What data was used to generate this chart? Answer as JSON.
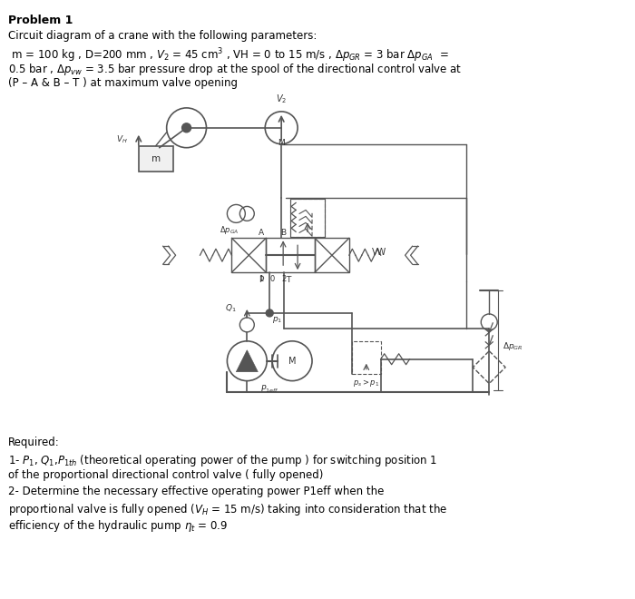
{
  "title": "Problem 1",
  "bg_color": "#ffffff",
  "text_color": "#000000",
  "line_color": "#555555",
  "fig_width": 7.0,
  "fig_height": 6.6,
  "header_lines": [
    "Circuit diagram of a crane with the following parameters:",
    " m = 100 kg , D=200 mm , V₂ = 45 cm³ , VH = 0 to 15 m/s , Δpᴳᴿ = 3 bar Δpᴳᴬ  =",
    "0.5 bar , Δpᵥᵥ = 3.5 bar pressure drop at the spool of the directional control valve at",
    "(P – A & B – T ) at maximum valve opening"
  ],
  "footer_lines": [
    "Required:",
    "1- P₁, Q₁,P₁th (theoretical operating power of the pump ) for switching position 1",
    "of the proportional directional control valve ( fully opened)",
    "2- Determine the necessary effective operating power P1eff when the",
    "proportional valve is fully opened (Vᴴ = 15 m/s) taking into consideration that the",
    "efficiency of the hydraulic pump ηt = 0.9"
  ]
}
